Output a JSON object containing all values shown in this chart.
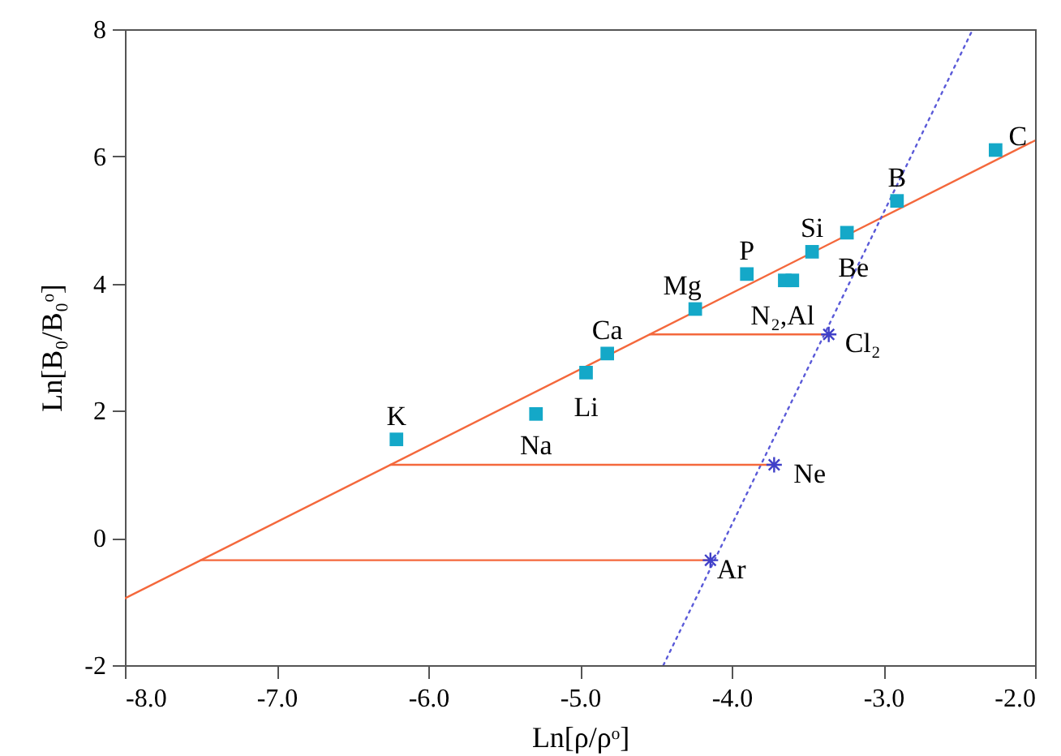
{
  "chart_data": {
    "type": "scatter",
    "xlabel": "Ln[ρ/ρᵒ]",
    "ylabel": "Ln[B₀/B₀ᵒ]",
    "xlim": [
      -8,
      -2
    ],
    "xticks": [
      {
        "value": -8,
        "label": "-8.0"
      },
      {
        "value": -7,
        "label": "-7.0"
      },
      {
        "value": -6,
        "label": "-6.0"
      },
      {
        "value": -5,
        "label": "-5.0"
      },
      {
        "value": -4,
        "label": "-4.0"
      },
      {
        "value": -3,
        "label": "-3.0"
      },
      {
        "value": -2,
        "label": "-2.0"
      }
    ],
    "ylim": [
      -2,
      8
    ],
    "yticks": [
      -2,
      0,
      2,
      4,
      6,
      8
    ],
    "grid": false,
    "series": [
      {
        "type": "line",
        "color": "#f4683c",
        "line_style": "solid",
        "x": [
          -8,
          -2
        ],
        "values": [
          -0.95,
          6.25
        ]
      },
      {
        "type": "line",
        "color": "#5a5ad8",
        "line_style": "dotted",
        "x": [
          -4.45,
          -2.41
        ],
        "values": [
          -2,
          8
        ]
      },
      {
        "type": "line",
        "color": "#f4683c",
        "line_style": "solid",
        "x": [
          -3.36,
          -4.54
        ],
        "values": [
          3.2,
          3.2
        ]
      },
      {
        "type": "line",
        "color": "#f4683c",
        "line_style": "solid",
        "x": [
          -3.72,
          -6.25
        ],
        "values": [
          1.15,
          1.15
        ]
      },
      {
        "type": "line",
        "color": "#f4683c",
        "line_style": "solid",
        "x": [
          -4.14,
          -7.5
        ],
        "values": [
          -0.35,
          -0.35
        ]
      },
      {
        "color": "#14a8c8",
        "marker": "square",
        "x": [
          -6.21,
          -5.29,
          -4.96,
          -4.82,
          -4.24,
          -3.9,
          -3.65,
          -3.6,
          -3.47,
          -3.24,
          -2.91,
          -2.26
        ],
        "values": [
          1.55,
          1.95,
          2.6,
          2.9,
          3.6,
          4.15,
          4.05,
          4.05,
          4.5,
          4.8,
          5.3,
          6.1
        ]
      },
      {
        "type": "scatter",
        "color": "#4040c8",
        "marker": "cross",
        "x": [
          -3.36,
          -3.72,
          -4.14
        ],
        "values": [
          3.2,
          1.15,
          -0.35
        ]
      }
    ],
    "annotations": [
      {
        "text": "K",
        "x": -6.21,
        "y": 1.55
      },
      {
        "text": "Na",
        "x": -5.29,
        "y": 1.95
      },
      {
        "text": "Li",
        "x": -4.96,
        "y": 2.6
      },
      {
        "text": "Ca",
        "x": -4.82,
        "y": 2.9
      },
      {
        "text": "Mg",
        "x": -4.24,
        "y": 3.6
      },
      {
        "text": "P",
        "x": -3.9,
        "y": 4.15
      },
      {
        "text": "N₂,Al",
        "x": -3.6,
        "y": 4.05
      },
      {
        "text": "Si",
        "x": -3.47,
        "y": 4.5
      },
      {
        "text": "Be",
        "x": -3.24,
        "y": 4.8
      },
      {
        "text": "B",
        "x": -2.91,
        "y": 5.3
      },
      {
        "text": "C",
        "x": -2.26,
        "y": 6.1
      },
      {
        "text": "Cl₂",
        "x": -3.36,
        "y": 3.2
      },
      {
        "text": "Ne",
        "x": -3.72,
        "y": 1.15
      },
      {
        "text": "Ar",
        "x": -4.14,
        "y": -0.35
      }
    ]
  }
}
